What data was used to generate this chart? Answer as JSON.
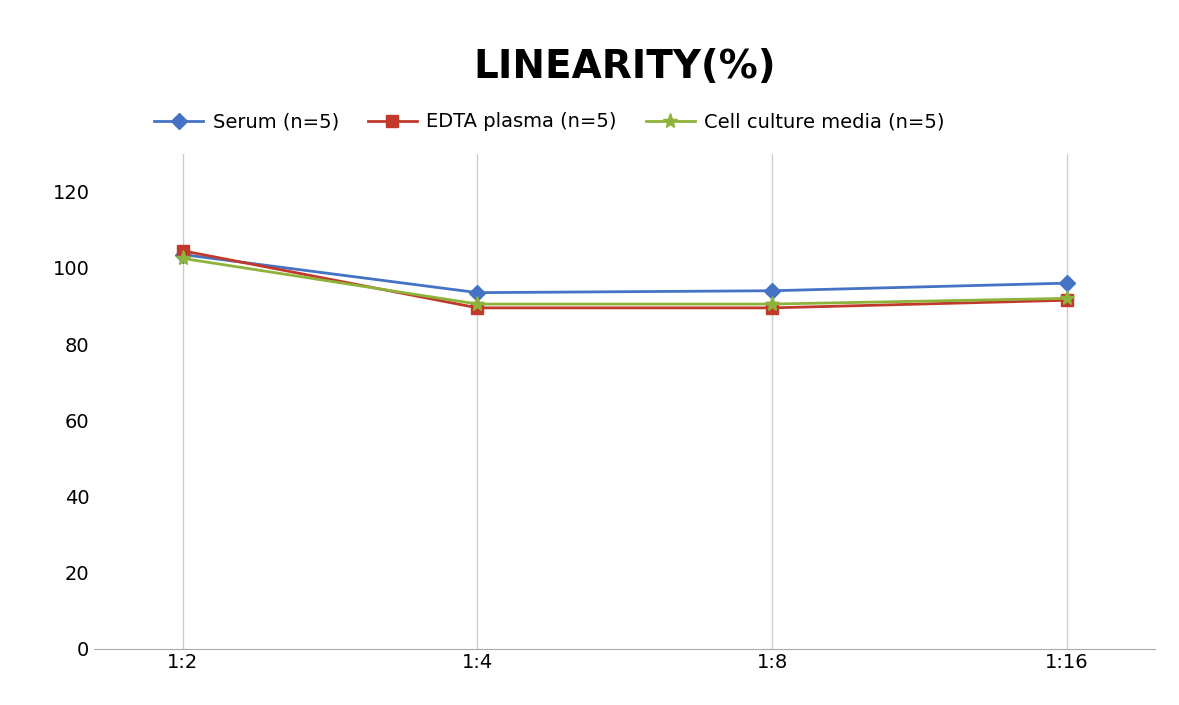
{
  "title": "LINEARITY(%)",
  "title_fontsize": 28,
  "title_fontweight": "bold",
  "x_labels": [
    "1:2",
    "1:4",
    "1:8",
    "1:16"
  ],
  "series": [
    {
      "label": "Serum (n=5)",
      "color": "#4472C4",
      "marker": "D",
      "markersize": 8,
      "values": [
        103.5,
        93.5,
        94.0,
        96.0
      ]
    },
    {
      "label": "EDTA plasma (n=5)",
      "color": "#C0392B",
      "marker": "s",
      "markersize": 8,
      "values": [
        104.5,
        89.5,
        89.5,
        91.5
      ]
    },
    {
      "label": "Cell culture media (n=5)",
      "color": "#8DB33A",
      "marker": "*",
      "markersize": 11,
      "values": [
        102.5,
        90.5,
        90.5,
        92.0
      ]
    }
  ],
  "ylim": [
    0,
    130
  ],
  "yticks": [
    0,
    20,
    40,
    60,
    80,
    100,
    120
  ],
  "grid_color": "#CCCCCC",
  "background_color": "#FFFFFF",
  "legend_fontsize": 14,
  "tick_fontsize": 14
}
